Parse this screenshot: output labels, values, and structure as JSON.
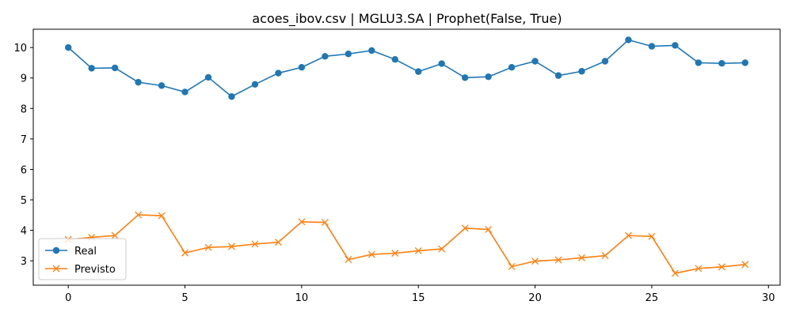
{
  "chart_data": {
    "type": "line",
    "title": "acoes_ibov.csv | MGLU3.SA | Prophet(False, True)",
    "xlabel": "",
    "ylabel": "",
    "xlim": [
      -1.5,
      30.5
    ],
    "ylim": [
      2.2,
      10.6
    ],
    "x_ticks": [
      0,
      5,
      10,
      15,
      20,
      25,
      30
    ],
    "y_ticks": [
      3,
      4,
      5,
      6,
      7,
      8,
      9,
      10
    ],
    "x": [
      0,
      1,
      2,
      3,
      4,
      5,
      6,
      7,
      8,
      9,
      10,
      11,
      12,
      13,
      14,
      15,
      16,
      17,
      18,
      19,
      20,
      21,
      22,
      23,
      24,
      25,
      26,
      27,
      28,
      29
    ],
    "series": [
      {
        "name": "Real",
        "marker": "circle",
        "color": "#1f77b4",
        "values": [
          10.0,
          9.32,
          9.33,
          8.86,
          8.75,
          8.54,
          9.02,
          8.39,
          8.79,
          9.16,
          9.35,
          9.71,
          9.79,
          9.9,
          9.61,
          9.21,
          9.47,
          9.01,
          9.04,
          9.35,
          9.55,
          9.08,
          9.22,
          9.55,
          10.25,
          10.04,
          10.07,
          9.5,
          9.48,
          9.5
        ]
      },
      {
        "name": "Previsto",
        "marker": "x",
        "color": "#ff7f0e",
        "values": [
          3.7,
          3.77,
          3.83,
          4.51,
          4.48,
          3.26,
          3.44,
          3.47,
          3.55,
          3.61,
          4.28,
          4.26,
          3.04,
          3.21,
          3.25,
          3.33,
          3.39,
          4.07,
          4.03,
          2.81,
          2.99,
          3.03,
          3.1,
          3.17,
          3.83,
          3.8,
          2.59,
          2.75,
          2.8,
          2.88
        ]
      }
    ],
    "legend_position": "lower-left",
    "grid": false
  }
}
